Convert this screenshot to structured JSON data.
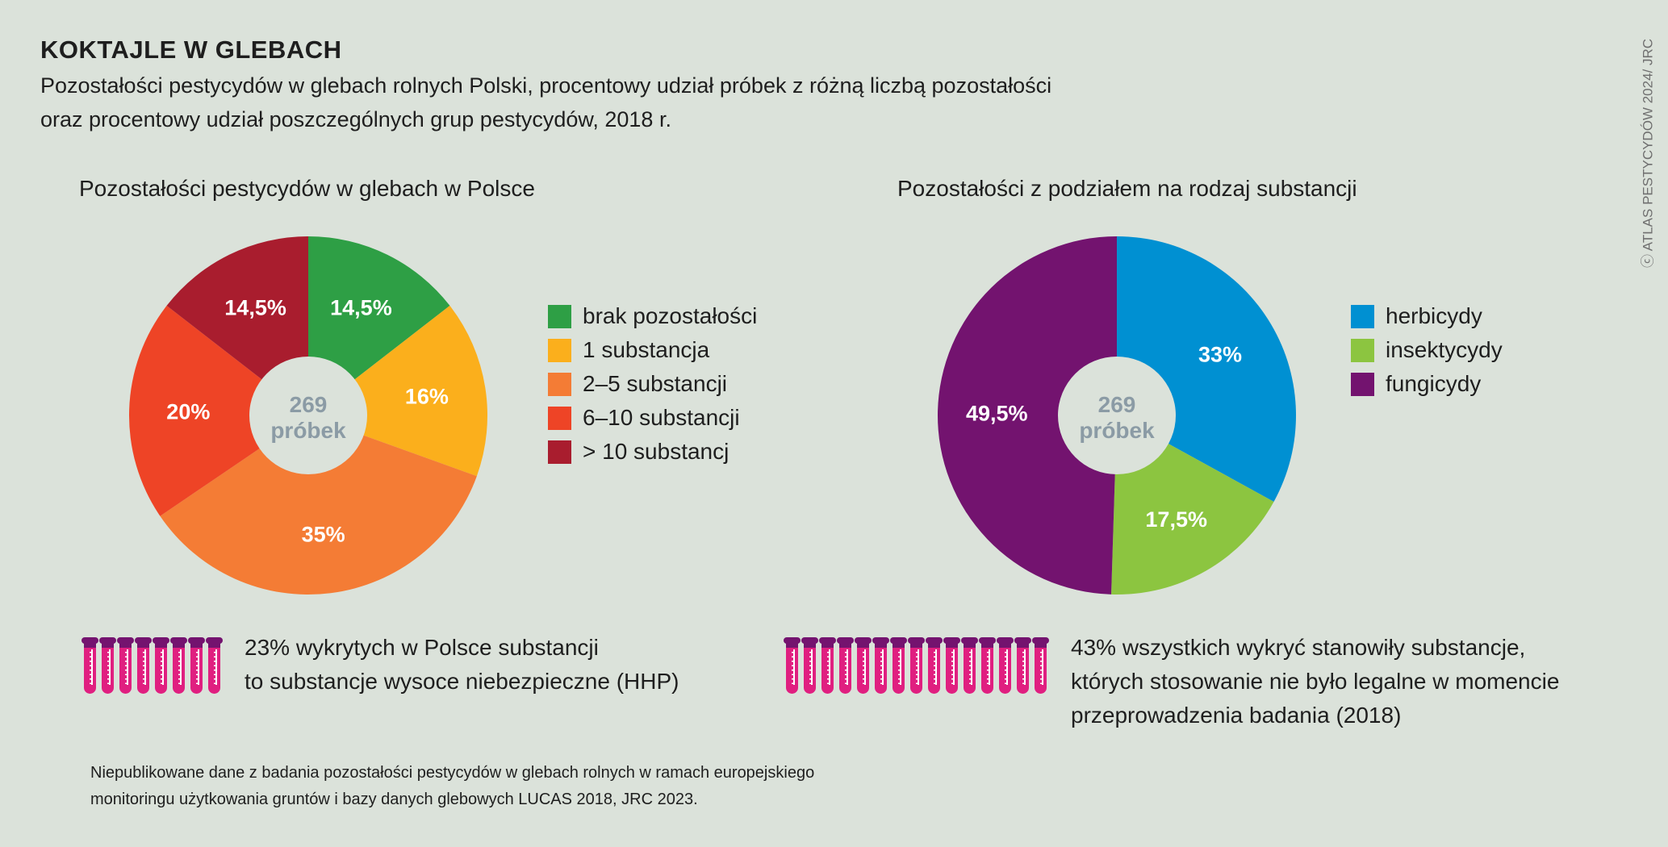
{
  "title": "KOKTAJLE W GLEBACH",
  "subtitle_line1": "Pozostałości pestycydów w glebach rolnych Polski, procentowy udział próbek z różną liczbą pozostałości",
  "subtitle_line2": "oraz procentowy udział poszczególnych grup pestycydów, 2018 r.",
  "credit": "ⓒ ATLAS PESTYCYDÓW 2024/ JRC",
  "chart_data": [
    {
      "type": "pie",
      "title": "Pozostałości pestycydów w glebach w Polsce",
      "center_label": [
        "269",
        "próbek"
      ],
      "categories": [
        "brak pozostałości",
        "1 substancja",
        "2–5 substancji",
        "6–10 substancji",
        "> 10 substancj"
      ],
      "values": [
        14.5,
        16,
        35,
        20,
        14.5
      ],
      "labels": [
        "14,5%",
        "16%",
        "35%",
        "20%",
        "14,5%"
      ],
      "colors": [
        "#2e9f45",
        "#fbaf1c",
        "#f47c35",
        "#ee4426",
        "#a91d2e"
      ],
      "legend": "right"
    },
    {
      "type": "pie",
      "title": "Pozostałości z podziałem na rodzaj substancji",
      "center_label": [
        "269",
        "próbek"
      ],
      "categories": [
        "herbicydy",
        "insektycydy",
        "fungicydy"
      ],
      "values": [
        33,
        17.5,
        49.5
      ],
      "labels": [
        "33%",
        "17,5%",
        "49,5%"
      ],
      "colors": [
        "#0090d2",
        "#8cc540",
        "#73136f"
      ],
      "legend": "right"
    }
  ],
  "notes": [
    {
      "tubes": 8,
      "lines": [
        "23% wykrytych w Polsce substancji",
        "to substancje wysoce niebezpieczne (HHP)"
      ]
    },
    {
      "tubes": 15,
      "lines": [
        "43% wszystkich wykryć stanowiły substancje,",
        "których stosowanie nie było legalne w momencie",
        "przeprowadzenia badania (2018)"
      ]
    }
  ],
  "footnote_line1": "Niepublikowane dane z badania pozostałości pestycydów w glebach rolnych w ramach europejskiego",
  "footnote_line2": "monitoringu użytkowania gruntów i bazy danych glebowych LUCAS 2018, JRC 2023."
}
